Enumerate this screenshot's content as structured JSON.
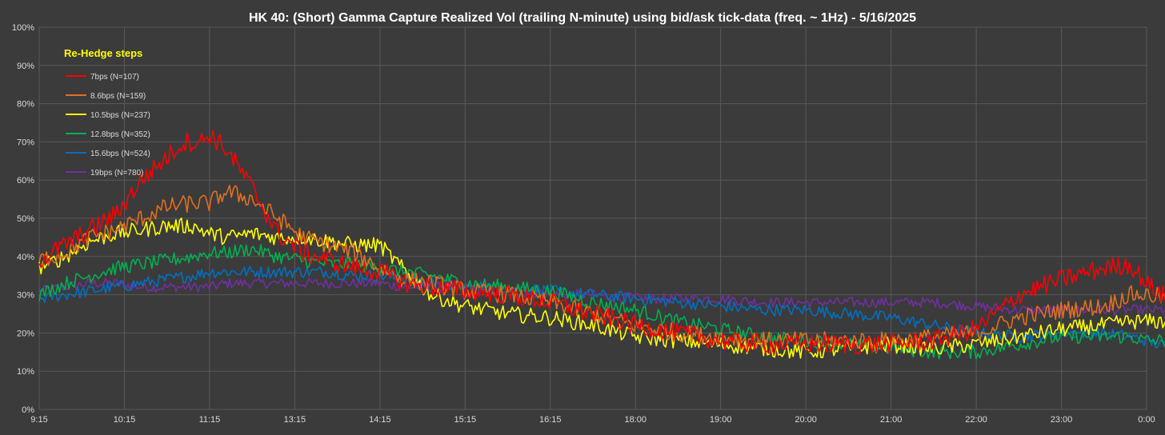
{
  "chart_data": {
    "type": "line",
    "title": "HK 40: (Short) Gamma Capture Realized Vol (trailing N-minute) using bid/ask tick-data (freq. ~ 1Hz) - 5/16/2025",
    "xlabel": "",
    "ylabel": "",
    "ylim": [
      0,
      100
    ],
    "y_unit": "%",
    "grid": true,
    "legend_position": "top-left",
    "legend_title": "Re-Hedge steps",
    "x_ticks": [
      "9:15",
      "10:15",
      "11:15",
      "13:15",
      "14:15",
      "15:15",
      "16:15",
      "18:00",
      "19:00",
      "20:00",
      "21:00",
      "22:00",
      "23:00",
      "0:00"
    ],
    "y_ticks": [
      "0%",
      "10%",
      "20%",
      "30%",
      "40%",
      "50%",
      "60%",
      "70%",
      "80%",
      "90%",
      "100%"
    ],
    "series": [
      {
        "name": "7bps  (N=107)",
        "color": "#ff0000",
        "values": [
          [
            0,
            39
          ],
          [
            0.3,
            43
          ],
          [
            0.6,
            47
          ],
          [
            0.9,
            51
          ],
          [
            1.2,
            60
          ],
          [
            1.5,
            66
          ],
          [
            1.7,
            70
          ],
          [
            1.9,
            70
          ],
          [
            2.0,
            72
          ],
          [
            2.2,
            68
          ],
          [
            2.5,
            58
          ],
          [
            2.8,
            46
          ],
          [
            3.1,
            41
          ],
          [
            3.4,
            39
          ],
          [
            3.7,
            37
          ],
          [
            4.0,
            36
          ],
          [
            4.3,
            33
          ],
          [
            4.6,
            32
          ],
          [
            5.0,
            31
          ],
          [
            5.5,
            30
          ],
          [
            6.0,
            28
          ],
          [
            6.5,
            25
          ],
          [
            7.0,
            22
          ],
          [
            7.5,
            20
          ],
          [
            8.0,
            18
          ],
          [
            8.5,
            17
          ],
          [
            9.0,
            17
          ],
          [
            9.5,
            17
          ],
          [
            10.0,
            17
          ],
          [
            10.5,
            18
          ],
          [
            11.0,
            21
          ],
          [
            11.5,
            30
          ],
          [
            12.0,
            34
          ],
          [
            12.5,
            37
          ],
          [
            12.8,
            38
          ],
          [
            13.0,
            33
          ],
          [
            13.3,
            28
          ],
          [
            13.45,
            27
          ]
        ]
      },
      {
        "name": "8.6bps  (N=159)",
        "color": "#e07020",
        "values": [
          [
            0,
            39
          ],
          [
            0.3,
            41
          ],
          [
            0.6,
            45
          ],
          [
            0.9,
            47
          ],
          [
            1.2,
            50
          ],
          [
            1.5,
            53
          ],
          [
            1.8,
            54
          ],
          [
            2.0,
            54
          ],
          [
            2.2,
            57
          ],
          [
            2.5,
            55
          ],
          [
            2.8,
            50
          ],
          [
            3.1,
            45
          ],
          [
            3.4,
            43
          ],
          [
            3.7,
            41
          ],
          [
            4.0,
            37
          ],
          [
            4.3,
            34
          ],
          [
            4.6,
            33
          ],
          [
            5.0,
            31
          ],
          [
            5.5,
            30
          ],
          [
            6.0,
            28
          ],
          [
            6.5,
            25
          ],
          [
            7.0,
            22
          ],
          [
            7.5,
            20
          ],
          [
            8.0,
            19
          ],
          [
            8.5,
            18
          ],
          [
            9.0,
            18
          ],
          [
            9.5,
            18
          ],
          [
            10.0,
            18
          ],
          [
            10.5,
            19
          ],
          [
            11.0,
            20
          ],
          [
            11.5,
            24
          ],
          [
            12.0,
            26
          ],
          [
            12.5,
            27
          ],
          [
            12.8,
            30
          ],
          [
            13.0,
            30
          ],
          [
            13.3,
            29
          ],
          [
            13.45,
            30
          ]
        ]
      },
      {
        "name": "10.5bps  (N=237)",
        "color": "#ffff00",
        "values": [
          [
            0,
            37
          ],
          [
            0.3,
            40
          ],
          [
            0.6,
            44
          ],
          [
            0.9,
            46
          ],
          [
            1.2,
            47
          ],
          [
            1.5,
            48
          ],
          [
            1.8,
            48
          ],
          [
            2.0,
            46
          ],
          [
            2.2,
            45
          ],
          [
            2.5,
            46
          ],
          [
            2.8,
            45
          ],
          [
            3.1,
            45
          ],
          [
            3.4,
            44
          ],
          [
            3.7,
            43
          ],
          [
            4.0,
            43
          ],
          [
            4.3,
            36
          ],
          [
            4.6,
            30
          ],
          [
            5.0,
            27
          ],
          [
            5.5,
            25
          ],
          [
            6.0,
            24
          ],
          [
            6.5,
            22
          ],
          [
            7.0,
            19
          ],
          [
            7.5,
            18
          ],
          [
            8.0,
            17
          ],
          [
            8.5,
            16
          ],
          [
            9.0,
            15
          ],
          [
            9.5,
            16
          ],
          [
            10.0,
            17
          ],
          [
            10.5,
            16
          ],
          [
            11.0,
            17
          ],
          [
            11.5,
            19
          ],
          [
            12.0,
            21
          ],
          [
            12.5,
            22
          ],
          [
            12.8,
            23
          ],
          [
            13.0,
            23
          ],
          [
            13.3,
            23
          ],
          [
            13.45,
            23
          ]
        ]
      },
      {
        "name": "12.8bps  (N=352)",
        "color": "#00b050",
        "values": [
          [
            0,
            30
          ],
          [
            0.3,
            33
          ],
          [
            0.6,
            35
          ],
          [
            0.9,
            37
          ],
          [
            1.2,
            38
          ],
          [
            1.5,
            39
          ],
          [
            1.8,
            40
          ],
          [
            2.0,
            41
          ],
          [
            2.2,
            41
          ],
          [
            2.5,
            42
          ],
          [
            2.8,
            40
          ],
          [
            3.1,
            39
          ],
          [
            3.4,
            38
          ],
          [
            3.7,
            38
          ],
          [
            4.0,
            37
          ],
          [
            4.3,
            36
          ],
          [
            4.6,
            35
          ],
          [
            5.0,
            33
          ],
          [
            5.5,
            32
          ],
          [
            6.0,
            31
          ],
          [
            6.5,
            28
          ],
          [
            7.0,
            26
          ],
          [
            7.5,
            23
          ],
          [
            8.0,
            21
          ],
          [
            8.5,
            19
          ],
          [
            9.0,
            18
          ],
          [
            9.5,
            17
          ],
          [
            10.0,
            16
          ],
          [
            10.5,
            15
          ],
          [
            11.0,
            15
          ],
          [
            11.5,
            17
          ],
          [
            12.0,
            19
          ],
          [
            12.5,
            19
          ],
          [
            12.8,
            19
          ],
          [
            13.0,
            18
          ],
          [
            13.3,
            18
          ],
          [
            13.45,
            18
          ]
        ]
      },
      {
        "name": "15.6bps  (N=524)",
        "color": "#0070c0",
        "values": [
          [
            0,
            29
          ],
          [
            0.3,
            30
          ],
          [
            0.6,
            31
          ],
          [
            0.9,
            32
          ],
          [
            1.2,
            33
          ],
          [
            1.5,
            34
          ],
          [
            1.8,
            35
          ],
          [
            2.0,
            36
          ],
          [
            2.2,
            36
          ],
          [
            2.5,
            36
          ],
          [
            2.8,
            36
          ],
          [
            3.1,
            36
          ],
          [
            3.4,
            36
          ],
          [
            3.7,
            35
          ],
          [
            4.0,
            35
          ],
          [
            4.3,
            34
          ],
          [
            4.6,
            33
          ],
          [
            5.0,
            32
          ],
          [
            5.5,
            32
          ],
          [
            6.0,
            31
          ],
          [
            6.5,
            30
          ],
          [
            7.0,
            29
          ],
          [
            7.5,
            28
          ],
          [
            8.0,
            27
          ],
          [
            8.5,
            26
          ],
          [
            9.0,
            26
          ],
          [
            9.5,
            25
          ],
          [
            10.0,
            24
          ],
          [
            10.5,
            22
          ],
          [
            11.0,
            20
          ],
          [
            11.5,
            19
          ],
          [
            12.0,
            20
          ],
          [
            12.5,
            20
          ],
          [
            12.8,
            19
          ],
          [
            13.0,
            18
          ],
          [
            13.3,
            16
          ],
          [
            13.45,
            15
          ]
        ]
      },
      {
        "name": "19bps  (N=780)",
        "color": "#7030a0",
        "values": [
          [
            0,
            31
          ],
          [
            0.3,
            32
          ],
          [
            0.6,
            33
          ],
          [
            0.9,
            33
          ],
          [
            1.2,
            32
          ],
          [
            1.5,
            32
          ],
          [
            1.8,
            32
          ],
          [
            2.0,
            32
          ],
          [
            2.2,
            33
          ],
          [
            2.5,
            33
          ],
          [
            2.8,
            33
          ],
          [
            3.1,
            33
          ],
          [
            3.4,
            33
          ],
          [
            3.7,
            33
          ],
          [
            4.0,
            33
          ],
          [
            4.3,
            32
          ],
          [
            4.6,
            32
          ],
          [
            5.0,
            32
          ],
          [
            5.5,
            31
          ],
          [
            6.0,
            30
          ],
          [
            6.5,
            30
          ],
          [
            7.0,
            29
          ],
          [
            7.5,
            29
          ],
          [
            8.0,
            29
          ],
          [
            8.5,
            28
          ],
          [
            9.0,
            28
          ],
          [
            9.5,
            28
          ],
          [
            10.0,
            28
          ],
          [
            10.5,
            28
          ],
          [
            11.0,
            27
          ],
          [
            11.5,
            26
          ],
          [
            12.0,
            26
          ],
          [
            12.5,
            26
          ],
          [
            12.8,
            26
          ],
          [
            13.0,
            26
          ],
          [
            13.3,
            26
          ],
          [
            13.45,
            25
          ]
        ]
      }
    ]
  }
}
